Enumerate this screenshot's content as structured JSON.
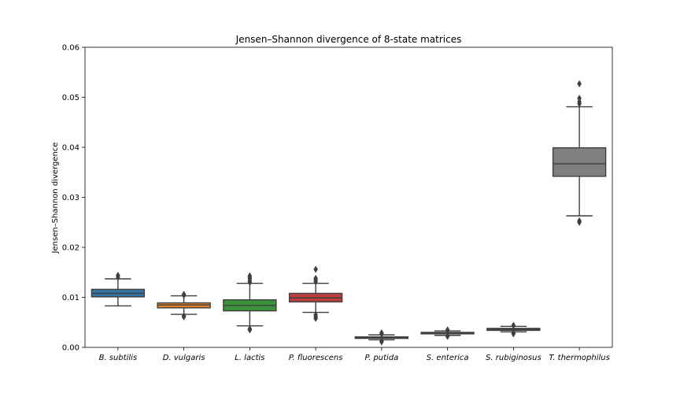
{
  "chart_data": {
    "type": "box",
    "title": "Jensen–Shannon divergence of 8-state matrices",
    "xlabel": "",
    "ylabel": "Jensen–Shannon divergence",
    "ylim": [
      0,
      0.06
    ],
    "yticks": [
      "0.00",
      "0.01",
      "0.02",
      "0.03",
      "0.04",
      "0.05",
      "0.06"
    ],
    "grid": false,
    "categories": [
      "B. subtilis",
      "D. vulgaris",
      "L. lactis",
      "P. fluorescens",
      "P. putida",
      "S. enterica",
      "S. rubiginosus",
      "T. thermophilus"
    ],
    "colors": [
      "#3274a1",
      "#e1812c",
      "#3a923a",
      "#c03d3e",
      "#9372b2",
      "#845b53",
      "#d684bd",
      "#7f7f7f"
    ],
    "boxes": [
      {
        "whislo": 0.0083,
        "q1": 0.0101,
        "med": 0.0108,
        "q3": 0.0116,
        "whishi": 0.0137,
        "fliers": [
          0.014,
          0.0144
        ]
      },
      {
        "whislo": 0.0066,
        "q1": 0.0079,
        "med": 0.0085,
        "q3": 0.0089,
        "whishi": 0.0103,
        "fliers": [
          0.0063,
          0.0061,
          0.0104,
          0.0106
        ]
      },
      {
        "whislo": 0.0043,
        "q1": 0.0073,
        "med": 0.0084,
        "q3": 0.0095,
        "whishi": 0.0128,
        "fliers": [
          0.0037,
          0.0035,
          0.013,
          0.0133,
          0.0137,
          0.014,
          0.0143
        ]
      },
      {
        "whislo": 0.007,
        "q1": 0.0091,
        "med": 0.0099,
        "q3": 0.0108,
        "whishi": 0.0128,
        "fliers": [
          0.0065,
          0.0061,
          0.0058,
          0.0131,
          0.0135,
          0.0138,
          0.0156
        ]
      },
      {
        "whislo": 0.0015,
        "q1": 0.0018,
        "med": 0.0019,
        "q3": 0.0021,
        "whishi": 0.0025,
        "fliers": [
          0.0013,
          0.0011,
          0.0027,
          0.0029
        ]
      },
      {
        "whislo": 0.0024,
        "q1": 0.0027,
        "med": 0.0029,
        "q3": 0.003,
        "whishi": 0.0033,
        "fliers": [
          0.0022,
          0.0034,
          0.0035
        ]
      },
      {
        "whislo": 0.0031,
        "q1": 0.0034,
        "med": 0.0036,
        "q3": 0.0038,
        "whishi": 0.0042,
        "fliers": [
          0.0029,
          0.0027,
          0.0044
        ]
      },
      {
        "whislo": 0.0263,
        "q1": 0.0342,
        "med": 0.0367,
        "q3": 0.0399,
        "whishi": 0.0481,
        "fliers": [
          0.0253,
          0.025,
          0.0487,
          0.0491,
          0.0498,
          0.0527
        ]
      }
    ]
  }
}
